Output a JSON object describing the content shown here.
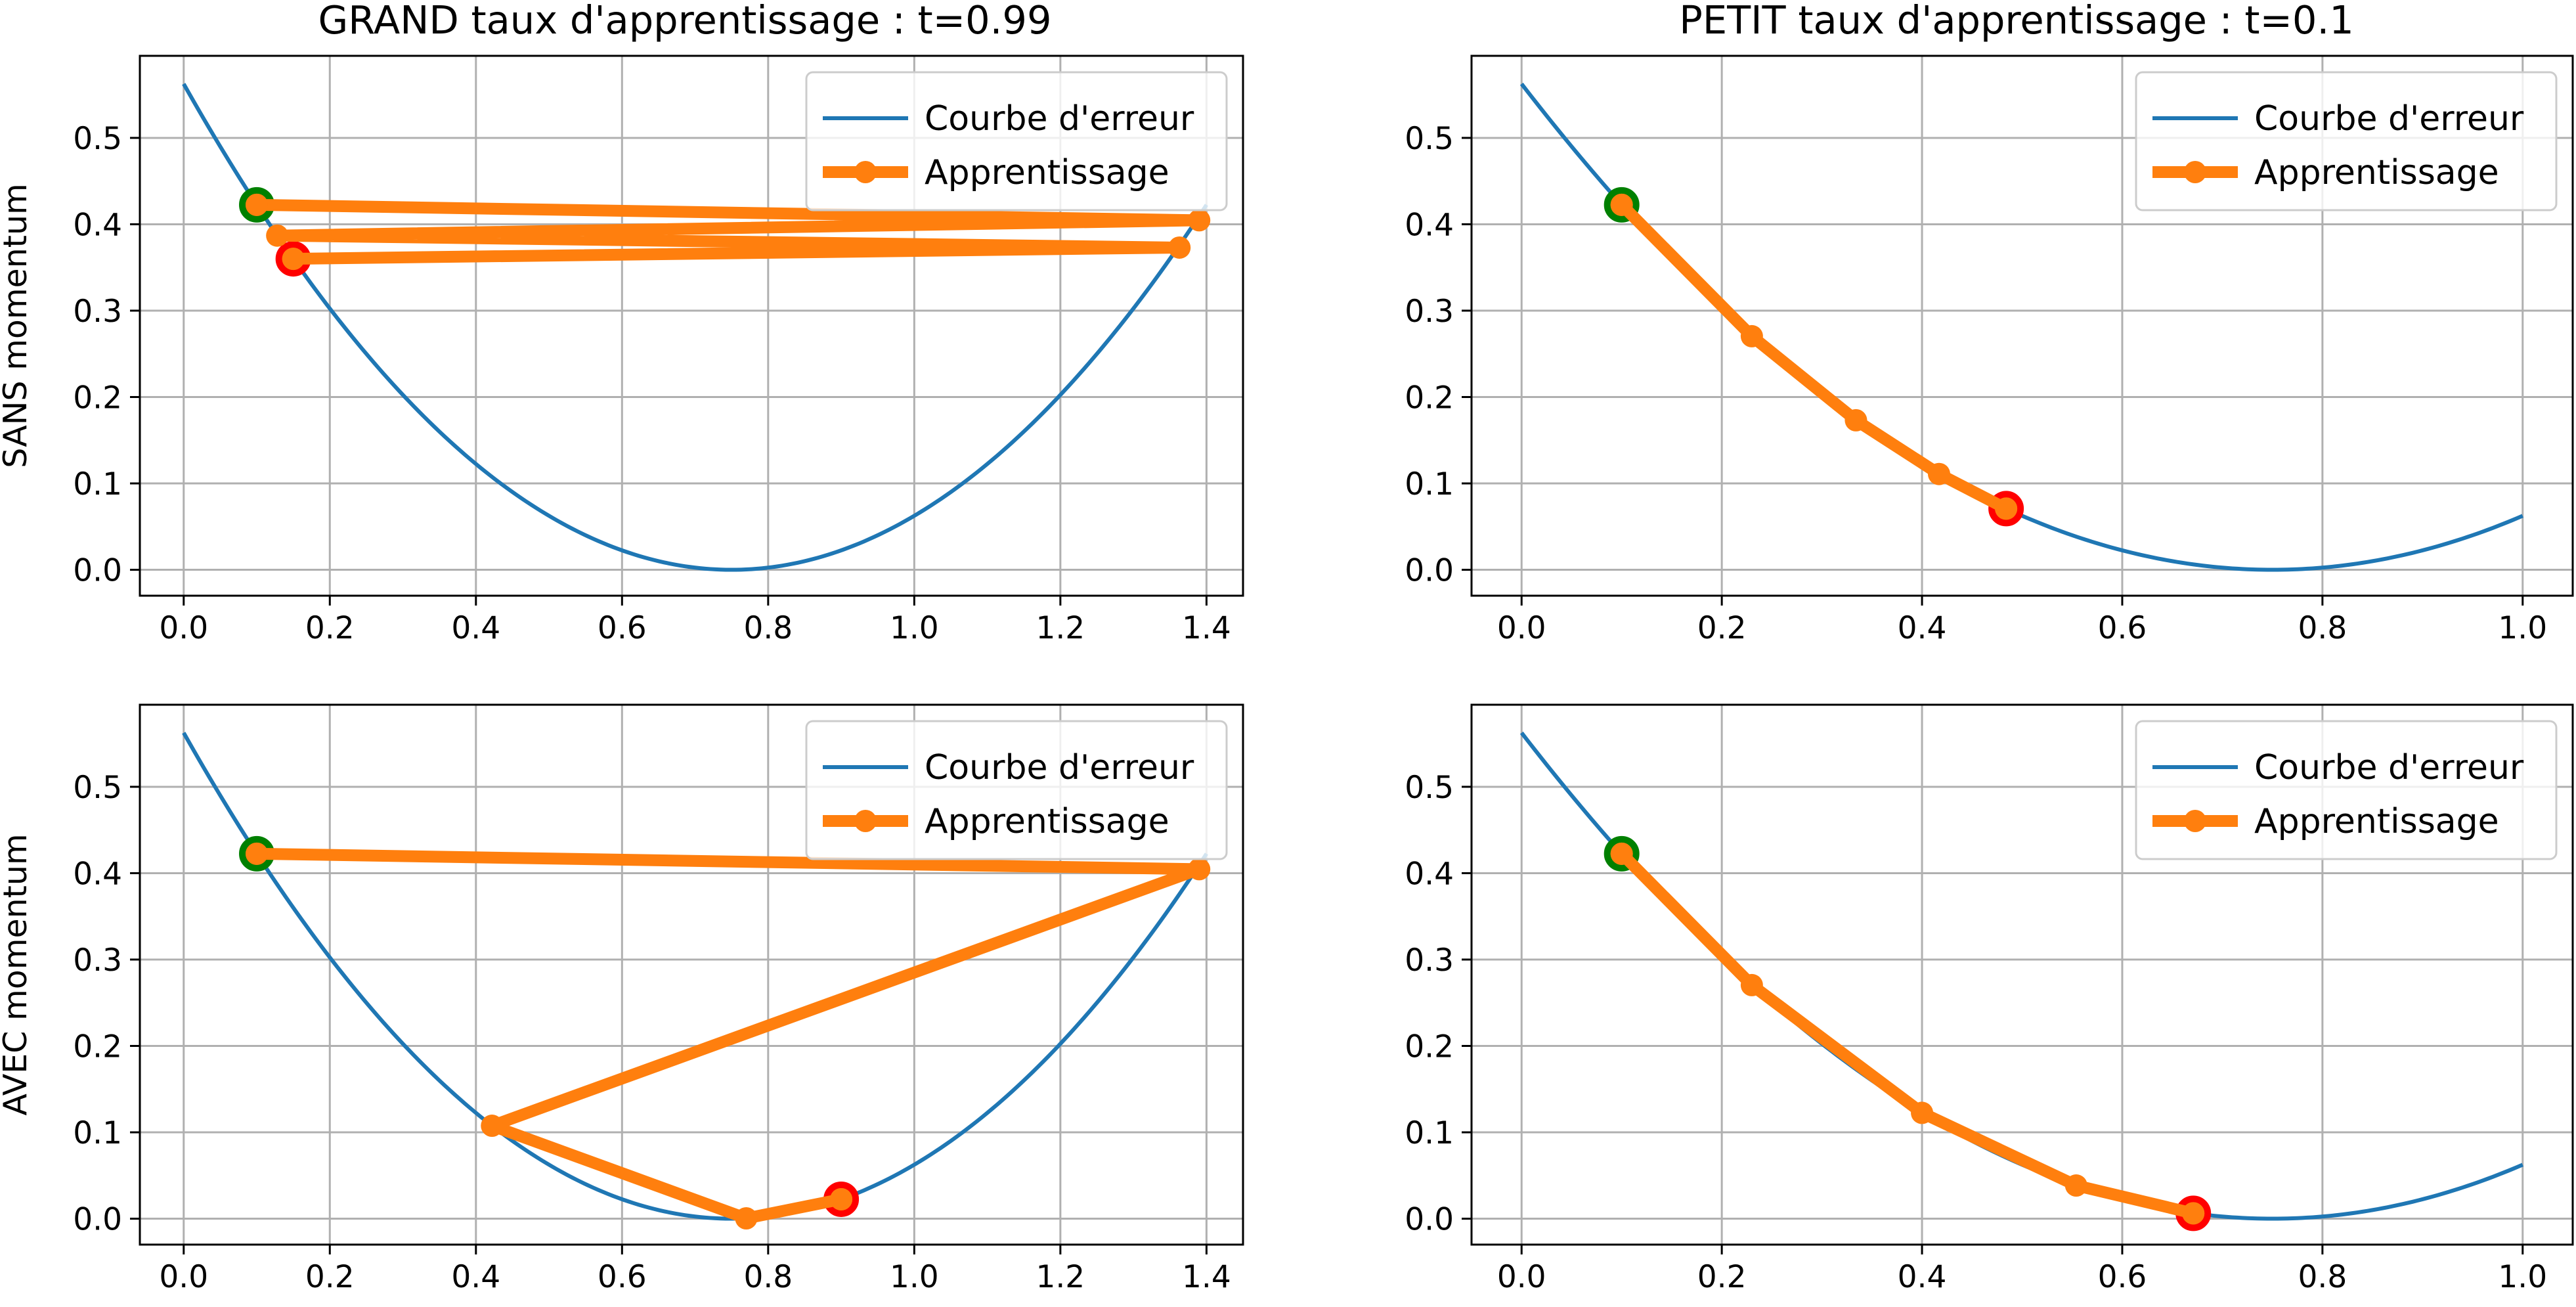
{
  "colors": {
    "curve": "#1f77b4",
    "learning": "#ff7f0e",
    "start_edge": "#008000",
    "end_edge": "#ff0000",
    "grid": "#b0b0b0"
  },
  "figure": {
    "column_titles": [
      "GRAND taux d'apprentissage : t=0.99",
      "PETIT taux d'apprentissage : t=0.1"
    ],
    "row_labels": [
      "SANS momentum",
      "AVEC momentum"
    ]
  },
  "chart_data": [
    {
      "type": "line",
      "title": "GRAND taux d'apprentissage : t=0.99",
      "ylabel": "SANS momentum",
      "xlim": [
        -0.06,
        1.45
      ],
      "ylim": [
        -0.03,
        0.595
      ],
      "xticks": [
        "0.0",
        "0.2",
        "0.4",
        "0.6",
        "0.8",
        "1.0",
        "1.2",
        "1.4"
      ],
      "yticks": [
        "0.0",
        "0.1",
        "0.2",
        "0.3",
        "0.4",
        "0.5"
      ],
      "grid": true,
      "legend_position": "upper right",
      "curve": {
        "name": "Courbe d'erreur",
        "function": "(x - 0.75)^2",
        "x_range": [
          0,
          1.4
        ]
      },
      "series": [
        {
          "name": "Apprentissage",
          "x": [
            0.1,
            1.39,
            0.128,
            1.363,
            0.15
          ],
          "y": [
            0.4225,
            0.4046,
            0.3869,
            0.373,
            0.36
          ]
        }
      ],
      "start_point": [
        0.1,
        0.4225
      ],
      "end_point": [
        0.15,
        0.36
      ]
    },
    {
      "type": "line",
      "title": "PETIT taux d'apprentissage : t=0.1",
      "ylabel": "",
      "xlim": [
        -0.05,
        1.05
      ],
      "ylim": [
        -0.03,
        0.595
      ],
      "xticks": [
        "0.0",
        "0.2",
        "0.4",
        "0.6",
        "0.8",
        "1.0"
      ],
      "yticks": [
        "0.0",
        "0.1",
        "0.2",
        "0.3",
        "0.4",
        "0.5"
      ],
      "grid": true,
      "legend_position": "upper right",
      "curve": {
        "name": "Courbe d'erreur",
        "function": "(x - 0.75)^2",
        "x_range": [
          0,
          1.0
        ]
      },
      "series": [
        {
          "name": "Apprentissage",
          "x": [
            0.1,
            0.23,
            0.334,
            0.417,
            0.484
          ],
          "y": [
            0.4225,
            0.2704,
            0.1731,
            0.1109,
            0.0708
          ]
        }
      ],
      "start_point": [
        0.1,
        0.4225
      ],
      "end_point": [
        0.484,
        0.0708
      ]
    },
    {
      "type": "line",
      "title": "",
      "ylabel": "AVEC momentum",
      "xlim": [
        -0.06,
        1.45
      ],
      "ylim": [
        -0.03,
        0.595
      ],
      "xticks": [
        "0.0",
        "0.2",
        "0.4",
        "0.6",
        "0.8",
        "1.0",
        "1.2",
        "1.4"
      ],
      "yticks": [
        "0.0",
        "0.1",
        "0.2",
        "0.3",
        "0.4",
        "0.5"
      ],
      "grid": true,
      "legend_position": "upper right",
      "curve": {
        "name": "Courbe d'erreur",
        "function": "(x - 0.75)^2",
        "x_range": [
          0,
          1.4
        ]
      },
      "series": [
        {
          "name": "Apprentissage",
          "x": [
            0.1,
            1.39,
            0.422,
            0.77,
            0.9
          ],
          "y": [
            0.4225,
            0.4046,
            0.1076,
            0.0004,
            0.0225
          ]
        }
      ],
      "start_point": [
        0.1,
        0.4225
      ],
      "end_point": [
        0.9,
        0.0225
      ]
    },
    {
      "type": "line",
      "title": "",
      "ylabel": "",
      "xlim": [
        -0.05,
        1.05
      ],
      "ylim": [
        -0.03,
        0.595
      ],
      "xticks": [
        "0.0",
        "0.2",
        "0.4",
        "0.6",
        "0.8",
        "1.0"
      ],
      "yticks": [
        "0.0",
        "0.1",
        "0.2",
        "0.3",
        "0.4",
        "0.5"
      ],
      "grid": true,
      "legend_position": "upper right",
      "curve": {
        "name": "Courbe d'erreur",
        "function": "(x - 0.75)^2",
        "x_range": [
          0,
          1.0
        ]
      },
      "series": [
        {
          "name": "Apprentissage",
          "x": [
            0.1,
            0.23,
            0.4,
            0.554,
            0.671
          ],
          "y": [
            0.4225,
            0.2704,
            0.1225,
            0.0384,
            0.0062
          ]
        }
      ],
      "start_point": [
        0.1,
        0.4225
      ],
      "end_point": [
        0.671,
        0.0062
      ]
    }
  ]
}
